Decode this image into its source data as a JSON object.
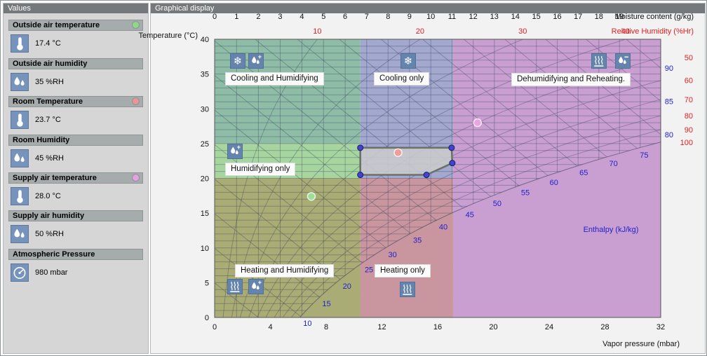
{
  "sidebar": {
    "title": "Values",
    "items": [
      {
        "label": "Outside air temperature",
        "value": "17.4 °C",
        "icon": "thermometer-icon",
        "dot_color": "#8fd981"
      },
      {
        "label": "Outside air humidity",
        "value": "35 %RH",
        "icon": "humidity-icon"
      },
      {
        "label": "Room Temperature",
        "value": "23.7 °C",
        "icon": "thermometer-icon",
        "dot_color": "#ec9393"
      },
      {
        "label": "Room Humidity",
        "value": "45 %RH",
        "icon": "humidity-icon"
      },
      {
        "label": "Supply air temperature",
        "value": "28.0 °C",
        "icon": "thermometer-icon",
        "dot_color": "#e9a0e3"
      },
      {
        "label": "Supply air humidity",
        "value": "50 %RH",
        "icon": "humidity-icon"
      },
      {
        "label": "Atmospheric Pressure",
        "value": "980 mbar",
        "icon": "gauge-icon"
      }
    ]
  },
  "chart": {
    "title": "Graphical display"
  },
  "chart_data": {
    "type": "psychrometric",
    "atmospheric_pressure_mbar": 980,
    "y_axis_left": {
      "label": "Temperature (°C)",
      "ticks": [
        40,
        35,
        30,
        25,
        20,
        15,
        10,
        5,
        0
      ],
      "min": 0,
      "max": 40
    },
    "x_axis_top": {
      "label": "Moisture content (g/kg)",
      "ticks": [
        0,
        1,
        2,
        3,
        4,
        5,
        6,
        7,
        8,
        9,
        10,
        11,
        12,
        13,
        14,
        15,
        16,
        17,
        18,
        19
      ]
    },
    "x_axis_bottom": {
      "label": "Vapor pressure (mbar)",
      "ticks": [
        0,
        4,
        8,
        12,
        16,
        20,
        24,
        28,
        32
      ],
      "min": 0,
      "max": 32
    },
    "rh_axis": {
      "label": "Relative Humidity (%Hr)",
      "top_labels": [
        10,
        20,
        30,
        40
      ],
      "right_labels": [
        50,
        60,
        70,
        80,
        90,
        100
      ],
      "color": "#e02020"
    },
    "enthalpy": {
      "label": "Enthalpy (kJ/kg)",
      "curve_labels": [
        10,
        15,
        20,
        25,
        30,
        35,
        40,
        45,
        50,
        55,
        60,
        65,
        70,
        75
      ],
      "right_labels": [
        80,
        85,
        90
      ],
      "color": "#2121cd"
    },
    "regions": [
      {
        "id": "cooling-humidifying",
        "label": "Cooling and Humidifying",
        "color": "#8ebca7",
        "t_min": 25,
        "t_max": 40,
        "p_min": 0,
        "p_max": 10.45,
        "icons": [
          "snowflake-icon",
          "humidify-icon"
        ]
      },
      {
        "id": "cooling-only",
        "label": "Cooling only",
        "color": "#a2a8ce",
        "t_min": 20,
        "t_max": 40,
        "p_min": 10.45,
        "p_max": 17.1,
        "icons": [
          "snowflake-icon"
        ]
      },
      {
        "id": "dehumidifying-reheating",
        "label": "Dehumidifying and Reheating.",
        "color": "#c89fd0",
        "t_min": 0,
        "t_max": 40,
        "p_min": 17.1,
        "p_max": 32,
        "icons": [
          "heat-icon",
          "dehumidify-icon"
        ]
      },
      {
        "id": "humidifying-only",
        "label": "Humidifying only",
        "color": "#a6d5a0",
        "t_min": 20,
        "t_max": 25,
        "p_min": 0,
        "p_max": 10.45,
        "icons": [
          "humidify-icon"
        ]
      },
      {
        "id": "heating-humidifying",
        "label": "Heating and Humidifying",
        "color": "#a9ac74",
        "t_min": 0,
        "t_max": 20,
        "p_min": 0,
        "p_max": 10.45,
        "icons": [
          "heat-icon",
          "humidify-icon"
        ]
      },
      {
        "id": "heating-only",
        "label": "Heating only",
        "color": "#c9969f",
        "t_min": 0,
        "t_max": 20,
        "p_min": 10.45,
        "p_max": 17.1,
        "icons": [
          "heat-icon"
        ]
      }
    ],
    "points": [
      {
        "id": "outside-air-point",
        "temp_c": 17.4,
        "rh_pct": 35,
        "color": "#9ddf96"
      },
      {
        "id": "room-point",
        "temp_c": 23.7,
        "rh_pct": 45,
        "color": "#ef9d9d"
      },
      {
        "id": "supply-air-point",
        "temp_c": 28.0,
        "rh_pct": 50,
        "color": "#eba4e3"
      }
    ],
    "comfort_zone": {
      "fill": "#cdcdcd",
      "stroke": "#6b716b",
      "vertex_color": "#4343cf",
      "vertices": [
        {
          "t": 24.4,
          "p": 10.45
        },
        {
          "t": 24.4,
          "p": 17.0
        },
        {
          "t": 22.2,
          "p": 17.05
        },
        {
          "t": 20.5,
          "p": 15.2
        },
        {
          "t": 20.5,
          "p": 10.45
        }
      ]
    },
    "grid": {
      "line_color": "#2f3450",
      "line_opacity": 0.32,
      "border_color": "#555555"
    }
  }
}
